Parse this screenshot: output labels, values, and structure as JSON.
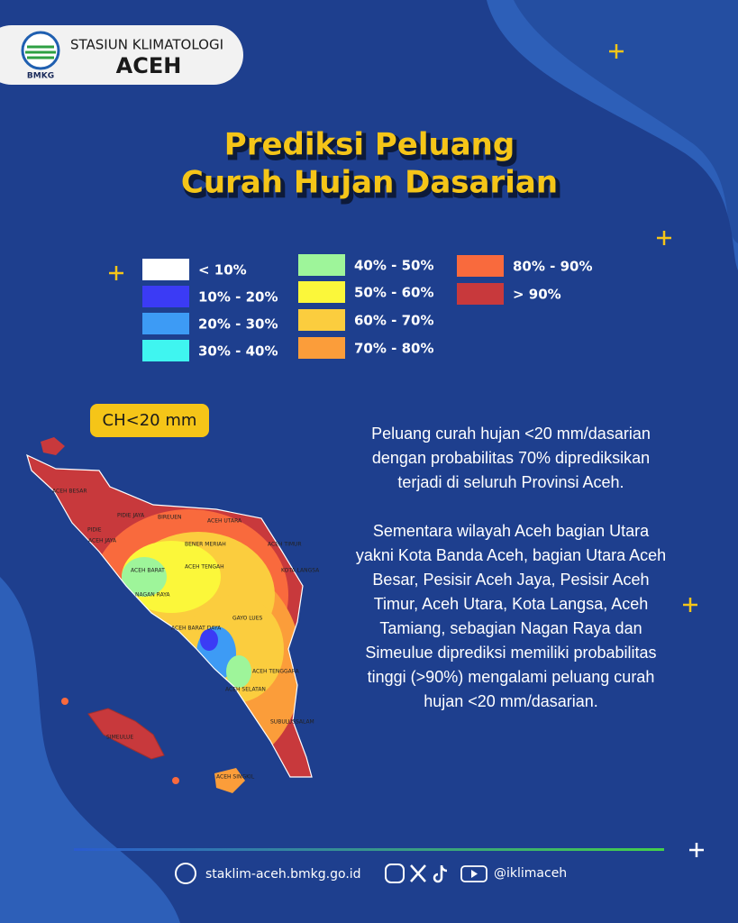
{
  "header": {
    "agency": "STASIUN KLIMATOLOGI",
    "station": "ACEH",
    "logo_text": "BMKG"
  },
  "title": {
    "lines": [
      "Prediksi Peluang",
      "Curah Hujan Dasarian"
    ]
  },
  "legend": {
    "items": [
      {
        "label": "< 10%",
        "color": "#ffffff"
      },
      {
        "label": "10% - 20%",
        "color": "#3b3bf5"
      },
      {
        "label": "20% - 30%",
        "color": "#3d9bf5"
      },
      {
        "label": "30% - 40%",
        "color": "#3ff5f0"
      },
      {
        "label": "40% - 50%",
        "color": "#9ef59a"
      },
      {
        "label": "50% - 60%",
        "color": "#fbf73a"
      },
      {
        "label": "60% - 70%",
        "color": "#fbcd3e"
      },
      {
        "label": "70% - 80%",
        "color": "#fb9d3a"
      },
      {
        "label": "80% - 90%",
        "color": "#f96a3d"
      },
      {
        "label": "> 90%",
        "color": "#c8393c"
      }
    ]
  },
  "map": {
    "badge": "CH<20 mm",
    "region_labels": [
      "ACEH BESAR",
      "PIDIE JAYA",
      "BIREUEN",
      "ACEH UTARA",
      "PIDIE",
      "ACEH JAYA",
      "BENER MERIAH",
      "ACEH TIMUR",
      "ACEH BARAT",
      "ACEH TENGAH",
      "KOTA LANGSA",
      "NAGAN RAYA",
      "GAYO LUES",
      "ACEH BARAT DAYA",
      "ACEH TENGGARA",
      "ACEH SELATAN",
      "SUBULUSSALAM",
      "SIMEULUE",
      "ACEH SINGKIL"
    ]
  },
  "description": {
    "paragraphs": [
      "Peluang curah hujan <20 mm/dasarian dengan probabilitas 70% diprediksikan terjadi di seluruh Provinsi Aceh.",
      "Sementara wilayah Aceh bagian Utara yakni Kota Banda Aceh, bagian Utara Aceh Besar, Pesisir Aceh Jaya, Pesisir Aceh Timur, Aceh Utara, Kota Langsa, Aceh Tamiang, sebagian Nagan Raya dan Simeulue diprediksi memiliki probabilitas tinggi (>90%) mengalami peluang curah hujan <20 mm/dasarian."
    ]
  },
  "footer": {
    "website": "staklim-aceh.bmkg.go.id",
    "social_handle": "@iklimaceh"
  }
}
